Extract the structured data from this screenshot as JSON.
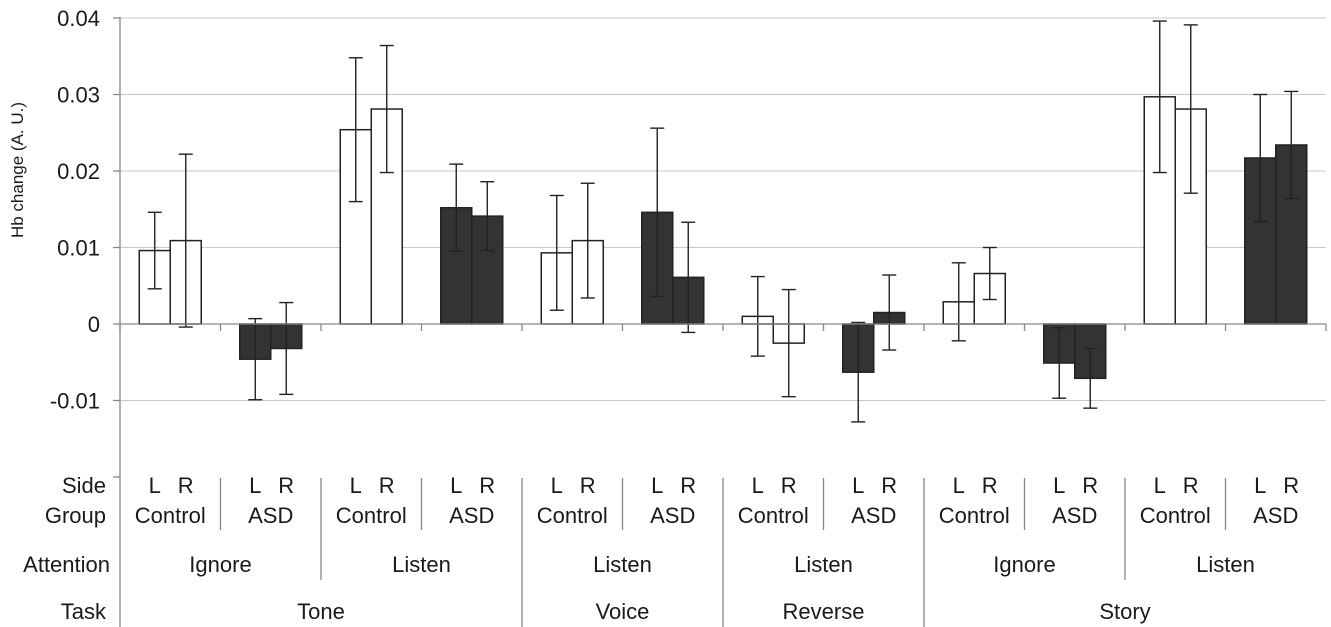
{
  "chart_data": {
    "type": "bar",
    "ylabel": "Hb change (A. U.)",
    "ylim": [
      -0.02,
      0.04
    ],
    "y_ticks": [
      "0.04",
      "0.03",
      "0.02",
      "0.01",
      "0",
      "-0.01"
    ],
    "y_tick_values": [
      0.04,
      0.03,
      0.02,
      0.01,
      0,
      -0.01
    ],
    "grid": true,
    "colors": {
      "Control": "#ffffff",
      "ASD": "#333333"
    },
    "row_labels": {
      "side": "Side",
      "group": "Group",
      "attention": "Attention",
      "task": "Task"
    },
    "side_labels": [
      "L",
      "R"
    ],
    "groups": [
      {
        "group": "Control",
        "attention": "Ignore",
        "task": "Tone",
        "values": [
          0.0096,
          0.0109
        ],
        "errors": [
          0.005,
          0.0113
        ]
      },
      {
        "group": "ASD",
        "attention": "Ignore",
        "task": "Tone",
        "values": [
          -0.0046,
          -0.0032
        ],
        "errors": [
          0.0053,
          0.006
        ]
      },
      {
        "group": "Control",
        "attention": "Listen",
        "task": "Tone",
        "values": [
          0.0254,
          0.0281
        ],
        "errors": [
          0.0094,
          0.0083
        ]
      },
      {
        "group": "ASD",
        "attention": "Listen",
        "task": "Tone",
        "values": [
          0.0152,
          0.0141
        ],
        "errors": [
          0.0057,
          0.0045
        ]
      },
      {
        "group": "Control",
        "attention": "Listen",
        "task": "Voice",
        "values": [
          0.0093,
          0.0109
        ],
        "errors": [
          0.0075,
          0.0075
        ]
      },
      {
        "group": "ASD",
        "attention": "Listen",
        "task": "Voice",
        "values": [
          0.0146,
          0.0061
        ],
        "errors": [
          0.011,
          0.0072
        ]
      },
      {
        "group": "Control",
        "attention": "Listen",
        "task": "Reverse",
        "values": [
          0.001,
          -0.0025
        ],
        "errors": [
          0.0052,
          0.007
        ]
      },
      {
        "group": "ASD",
        "attention": "Listen",
        "task": "Reverse",
        "values": [
          -0.0063,
          0.0015
        ],
        "errors": [
          0.0065,
          0.0049
        ]
      },
      {
        "group": "Control",
        "attention": "Ignore",
        "task": "Story",
        "values": [
          0.0029,
          0.0066
        ],
        "errors": [
          0.0051,
          0.0034
        ]
      },
      {
        "group": "ASD",
        "attention": "Ignore",
        "task": "Story",
        "values": [
          -0.0051,
          -0.0071
        ],
        "errors": [
          0.0046,
          0.0039
        ]
      },
      {
        "group": "Control",
        "attention": "Listen",
        "task": "Story",
        "values": [
          0.0297,
          0.0281
        ],
        "errors": [
          0.0099,
          0.011
        ]
      },
      {
        "group": "ASD",
        "attention": "Listen",
        "task": "Story",
        "values": [
          0.0217,
          0.0234
        ],
        "errors": [
          0.0083,
          0.007
        ]
      }
    ],
    "attention_spans": [
      {
        "label": "Ignore",
        "start": 0,
        "end": 1
      },
      {
        "label": "Listen",
        "start": 2,
        "end": 3
      },
      {
        "label": "Listen",
        "start": 4,
        "end": 5
      },
      {
        "label": "Listen",
        "start": 6,
        "end": 7
      },
      {
        "label": "Ignore",
        "start": 8,
        "end": 9
      },
      {
        "label": "Listen",
        "start": 10,
        "end": 11
      }
    ],
    "task_spans": [
      {
        "label": "Tone",
        "start": 0,
        "end": 3
      },
      {
        "label": "Voice",
        "start": 4,
        "end": 5
      },
      {
        "label": "Reverse",
        "start": 6,
        "end": 7
      },
      {
        "label": "Story",
        "start": 8,
        "end": 11
      }
    ]
  }
}
